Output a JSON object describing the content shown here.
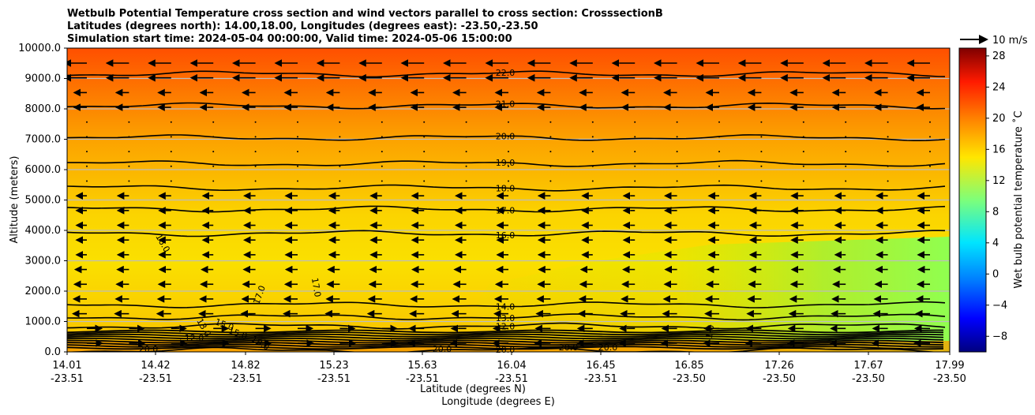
{
  "chart_data": {
    "type": "contour",
    "title_lines": [
      "Wetbulb Potential Temperature cross section and wind vectors parallel to cross section: CrosssectionB",
      "Latitudes (degrees north): 14.00,18.00, Longitudes (degrees east): -23.50,-23.50",
      "Simulation start time: 2024-05-04 00:00:00, Valid time: 2024-05-06 15:00:00"
    ],
    "xlabel": "Latitude (degrees N)",
    "xlabel2": "Longitude (degrees E)",
    "ylabel": "Altitude (meters)",
    "ylim": [
      0,
      10000
    ],
    "yticks": [
      "0.0",
      "1000.0",
      "2000.0",
      "3000.0",
      "4000.0",
      "5000.0",
      "6000.0",
      "7000.0",
      "8000.0",
      "9000.0",
      "10000.0"
    ],
    "xticks": [
      {
        "lat": "14.01",
        "lon": "-23.51"
      },
      {
        "lat": "14.42",
        "lon": "-23.51"
      },
      {
        "lat": "14.82",
        "lon": "-23.51"
      },
      {
        "lat": "15.23",
        "lon": "-23.51"
      },
      {
        "lat": "15.63",
        "lon": "-23.51"
      },
      {
        "lat": "16.04",
        "lon": "-23.51"
      },
      {
        "lat": "16.45",
        "lon": "-23.51"
      },
      {
        "lat": "16.85",
        "lon": "-23.50"
      },
      {
        "lat": "17.26",
        "lon": "-23.50"
      },
      {
        "lat": "17.67",
        "lon": "-23.50"
      },
      {
        "lat": "17.99",
        "lon": "-23.50"
      }
    ],
    "colorbar": {
      "label": "Wet bulb potential temperature ˚C",
      "min": -10,
      "max": 29,
      "ticks": [
        -8,
        -4,
        0,
        4,
        8,
        12,
        16,
        20,
        24,
        28
      ],
      "tick_labels": [
        "−8",
        "−4",
        "0",
        "4",
        "8",
        "12",
        "16",
        "20",
        "24",
        "28"
      ]
    },
    "quiver_key": "10 m/s",
    "contour_levels": [
      {
        "value": 22.0,
        "label": "22.0",
        "altitude_m": 9150
      },
      {
        "value": 21.0,
        "label": "21.0",
        "altitude_m": 8100
      },
      {
        "value": 20.0,
        "label": "20.0",
        "altitude_m": 7050
      },
      {
        "value": 19.0,
        "label": "19.0",
        "altitude_m": 6200
      },
      {
        "value": 18.0,
        "label": "18.0",
        "altitude_m": 5400
      },
      {
        "value": 17.0,
        "label": "17.0",
        "altitude_m": 4700
      },
      {
        "value": 16.0,
        "label": "16.0",
        "altitude_m": 3900
      },
      {
        "value": 14.0,
        "label": "14.0",
        "altitude_m": 1550
      },
      {
        "value": 13.0,
        "label": "13.0",
        "altitude_m": 1150
      },
      {
        "value": 12.0,
        "label": "12.0",
        "altitude_m": 850
      },
      {
        "value": 20.0,
        "label": "20.0",
        "altitude_m": 50
      }
    ],
    "extra_labels": [
      "16.0",
      "17.0",
      "17.0",
      "15.0",
      "15.0",
      "13.0",
      "12.0",
      "20.0",
      "18.0",
      "20.0",
      "20.0",
      "1.0",
      "20.0"
    ]
  }
}
